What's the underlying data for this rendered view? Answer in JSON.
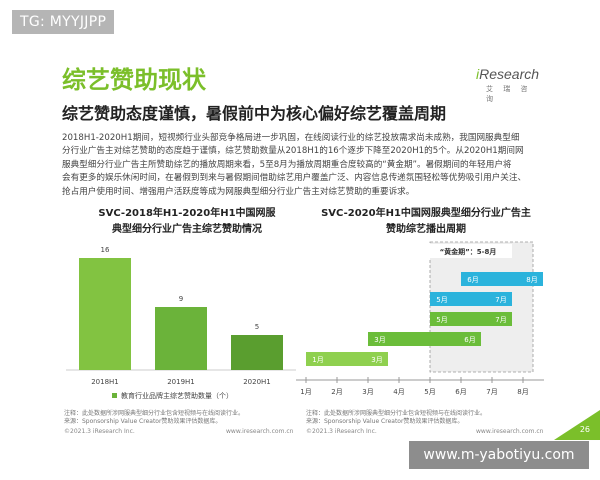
{
  "tag": "TG: MYYJJPP",
  "title": "综艺赞助现状",
  "logo": {
    "brand_i": "i",
    "brand_rest": "Research",
    "sub": "艾 瑞 咨 询"
  },
  "subtitle": "综艺赞助态度谨慎，暑假前中为核心偏好综艺覆盖周期",
  "paragraph": [
    "2018H1-2020H1期间，短视频行业头部竞争格局进一步巩固，在线阅读行业的综艺投放需求尚未成熟，我国网服典型细",
    "分行业广告主对综艺赞助的态度趋于谨慎，综艺赞助数量从2018H1的16个逐步下降至2020H1的5个。从2020H1期间网",
    "服典型细分行业广告主所赞助综艺的播放周期来看，5至8月为播放周期重合度较高的“黄金期”。暑假期间的年轻用户将",
    "会有更多的娱乐休闲时间，在暑假到到来与暑假期间借助综艺用户覆盖广泛、内容信息传递氛围轻松等优势吸引用户关注、",
    "抢占用户使用时间、增强用户活跃度等成为网服典型细分行业广告主对综艺赞助的重要诉求。"
  ],
  "colors": {
    "accent": "#7bbf2a",
    "bar": "#6bbd3a",
    "teal": "#2bb3dc"
  },
  "chart_data": [
    {
      "type": "bar",
      "title": "SVC-2018年H1-2020年H1中国网服典型细分行业广告主综艺赞助情况",
      "title_lines": [
        "SVC-2018年H1-2020年H1中国网服",
        "典型细分行业广告主综艺赞助情况"
      ],
      "categories": [
        "2018H1",
        "2019H1",
        "2020H1"
      ],
      "values": [
        16,
        9,
        5
      ],
      "data_labels": [
        "16",
        "9",
        "5"
      ],
      "colors": [
        "#82c341",
        "#6bb33a",
        "#5a9e2f"
      ],
      "legend": "教育行业品牌主综艺赞助数量（个）",
      "ylim": [
        0,
        20
      ],
      "grid": false
    },
    {
      "type": "gantt",
      "title": "SVC-2020年H1中国网服典型细分行业广告主赞助综艺播出周期",
      "title_lines": [
        "SVC-2020年H1中国网服典型细分行业广告主",
        "赞助综艺播出周期"
      ],
      "x_ticks": [
        "1月",
        "2月",
        "3月",
        "4月",
        "5月",
        "6月",
        "7月",
        "8月"
      ],
      "highlight": {
        "label": "“黄金期”：5-8月",
        "start_month": 5,
        "end_month": 8
      },
      "bars": [
        {
          "start_month": 6,
          "end_month": 8,
          "start_label": "6月",
          "end_label": "8月",
          "color": "#2bb3dc"
        },
        {
          "start_month": 5,
          "end_month": 7,
          "start_label": "5月",
          "end_label": "7月",
          "color": "#2bb3dc"
        },
        {
          "start_month": 5,
          "end_month": 7,
          "start_label": "5月",
          "end_label": "7月",
          "color": "#6bbd3a"
        },
        {
          "start_month": 3,
          "end_month": 6,
          "start_label": "3月",
          "end_label": "6月",
          "color": "#6bbd3a"
        },
        {
          "start_month": 1,
          "end_month": 3,
          "start_label": "1月",
          "end_label": "3月",
          "color": "#8fd04f"
        }
      ]
    }
  ],
  "notes": {
    "left": [
      "注释：此处数据所涉网服典型细分行业包含短视频与在线阅读行业。",
      "来源：Sponsorship Value Creator赞助效果评估数据库。"
    ],
    "right": [
      "注释：此处数据所涉网服典型细分行业包含短视频与在线阅读行业。",
      "来源：Sponsorship Value Creator赞助效果评估数据库。"
    ]
  },
  "footer": {
    "left_copyright": "©2021.3 iResearch Inc.",
    "left_url": "www.iresearch.com.cn",
    "right_copyright": "©2021.3 iResearch Inc.",
    "right_url": "www.iresearch.com.cn",
    "page": "26"
  },
  "watermark": "www.m-yabotiyu.com"
}
